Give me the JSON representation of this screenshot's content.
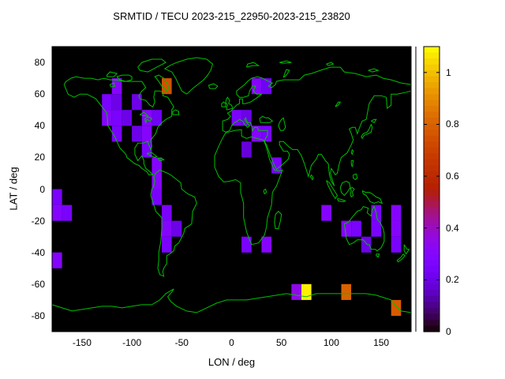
{
  "figure": {
    "background_color": "#ffffff",
    "plot_background_color": "#000000",
    "coastline_color": "#00c000",
    "border_color": "#000000"
  },
  "chart_data": {
    "type": "heatmap",
    "title": "SRMTID / TECU 2023-215_22950-2023-215_23820",
    "xlabel": "LON / deg",
    "ylabel": "LAT / deg",
    "xlim": [
      -180,
      180
    ],
    "ylim": [
      -90,
      90
    ],
    "x_ticks": [
      -150,
      -100,
      -50,
      0,
      50,
      100,
      150
    ],
    "y_ticks": [
      80,
      60,
      40,
      20,
      0,
      -20,
      -40,
      -60,
      -80
    ],
    "grid": false,
    "bin_size_deg": 10,
    "value_units": "TECU",
    "colorbar": {
      "position": "right",
      "min": 0,
      "max": 1.1,
      "ticks": [
        0,
        0.2,
        0.4,
        0.6,
        0.8,
        1
      ],
      "palette": "gnuplot-pm3d black-purple-orange-yellow"
    },
    "cell_format": [
      "lon_center_deg",
      "lat_center_deg",
      "tecu"
    ],
    "cells": [
      [
        -115,
        65,
        0.3
      ],
      [
        -65,
        65,
        0.75
      ],
      [
        25,
        65,
        0.3
      ],
      [
        35,
        65,
        0.22
      ],
      [
        -125,
        55,
        0.25
      ],
      [
        -115,
        55,
        0.2
      ],
      [
        -95,
        55,
        0.2
      ],
      [
        -125,
        45,
        0.3
      ],
      [
        -115,
        45,
        0.25
      ],
      [
        -105,
        45,
        0.2
      ],
      [
        -85,
        45,
        0.3
      ],
      [
        -75,
        45,
        0.22
      ],
      [
        5,
        45,
        0.25
      ],
      [
        15,
        45,
        0.2
      ],
      [
        -115,
        35,
        0.25
      ],
      [
        -95,
        35,
        0.2
      ],
      [
        -85,
        35,
        0.3
      ],
      [
        25,
        35,
        0.3
      ],
      [
        35,
        35,
        0.25
      ],
      [
        -85,
        25,
        0.25
      ],
      [
        15,
        25,
        0.18
      ],
      [
        -75,
        15,
        0.3
      ],
      [
        45,
        15,
        0.25
      ],
      [
        -75,
        5,
        0.3
      ],
      [
        -175,
        -5,
        0.25
      ],
      [
        -75,
        -5,
        0.25
      ],
      [
        -175,
        -15,
        0.3
      ],
      [
        -165,
        -15,
        0.25
      ],
      [
        -65,
        -15,
        0.25
      ],
      [
        95,
        -15,
        0.3
      ],
      [
        145,
        -15,
        0.25
      ],
      [
        165,
        -15,
        0.3
      ],
      [
        -65,
        -25,
        0.3
      ],
      [
        -55,
        -25,
        0.2
      ],
      [
        115,
        -25,
        0.3
      ],
      [
        125,
        -25,
        0.25
      ],
      [
        145,
        -25,
        0.25
      ],
      [
        165,
        -25,
        0.3
      ],
      [
        -65,
        -35,
        0.25
      ],
      [
        15,
        -35,
        0.25
      ],
      [
        35,
        -35,
        0.3
      ],
      [
        135,
        -35,
        0.2
      ],
      [
        165,
        -35,
        0.25
      ],
      [
        -175,
        -45,
        0.3
      ],
      [
        65,
        -65,
        0.35
      ],
      [
        75,
        -65,
        1.08
      ],
      [
        115,
        -65,
        0.8
      ],
      [
        165,
        -75,
        0.78
      ]
    ]
  }
}
